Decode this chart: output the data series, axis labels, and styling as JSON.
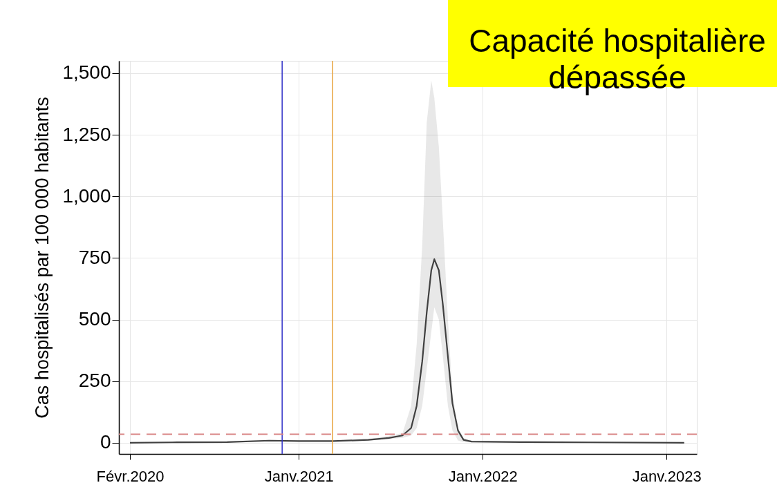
{
  "chart_data": {
    "type": "line",
    "ylabel": "Cas hospitalisés par 100 000 habitants",
    "annotations": [
      "Capacité hospitalière\ndépassée"
    ],
    "x": [
      "2020-02-01",
      "2020-04-25",
      "2020-08-12",
      "2020-11-03",
      "2021-01-01",
      "2021-03-11",
      "2021-05-19",
      "2021-06-29",
      "2021-07-26",
      "2021-08-12",
      "2021-08-23",
      "2021-09-03",
      "2021-09-12",
      "2021-09-21",
      "2021-09-27",
      "2021-10-06",
      "2021-10-14",
      "2021-10-24",
      "2021-11-02",
      "2021-11-13",
      "2021-11-24",
      "2021-12-10",
      "2022-03-17",
      "2022-08-03",
      "2023-02-05"
    ],
    "series": [
      {
        "color": "#404040",
        "line_style": "solid",
        "values": [
          0,
          2,
          3,
          9,
          7,
          7,
          12,
          20,
          30,
          60,
          150,
          330,
          530,
          700,
          745,
          700,
          560,
          350,
          160,
          50,
          12,
          5,
          3,
          2,
          0
        ],
        "lower": [
          0,
          1,
          2,
          6,
          5,
          5,
          9,
          15,
          20,
          30,
          60,
          150,
          300,
          450,
          550,
          500,
          350,
          150,
          50,
          10,
          3,
          2,
          1,
          1,
          0
        ],
        "upper": [
          1,
          3,
          5,
          12,
          10,
          10,
          16,
          28,
          40,
          150,
          400,
          800,
          1300,
          1470,
          1400,
          1200,
          900,
          500,
          200,
          60,
          20,
          8,
          5,
          3,
          1
        ]
      }
    ],
    "xlim": [
      "2020-01-10",
      "2023-03-02"
    ],
    "xticks": [
      {
        "value": "2020-02-01",
        "label": "Févr.2020"
      },
      {
        "value": "2021-01-01",
        "label": "Janv.2021"
      },
      {
        "value": "2022-01-01",
        "label": "Janv.2022"
      },
      {
        "value": "2023-01-01",
        "label": "Janv.2023"
      }
    ],
    "ylim": [
      -45,
      1550
    ],
    "yticks": [
      0,
      250,
      500,
      750,
      {
        "value": 1000,
        "label": "1,000"
      },
      {
        "value": 1250,
        "label": "1,250"
      },
      {
        "value": 1500,
        "label": "1,500"
      }
    ],
    "ref_lines": [
      {
        "axis": "x",
        "value": "2020-11-29",
        "color": "#3030c8",
        "line_style": "solid"
      },
      {
        "axis": "x",
        "value": "2021-03-09",
        "color": "#e8a33c",
        "line_style": "solid"
      },
      {
        "axis": "y",
        "value": 35,
        "color": "#d98585",
        "line_style": "dashed"
      }
    ],
    "grid": true
  }
}
